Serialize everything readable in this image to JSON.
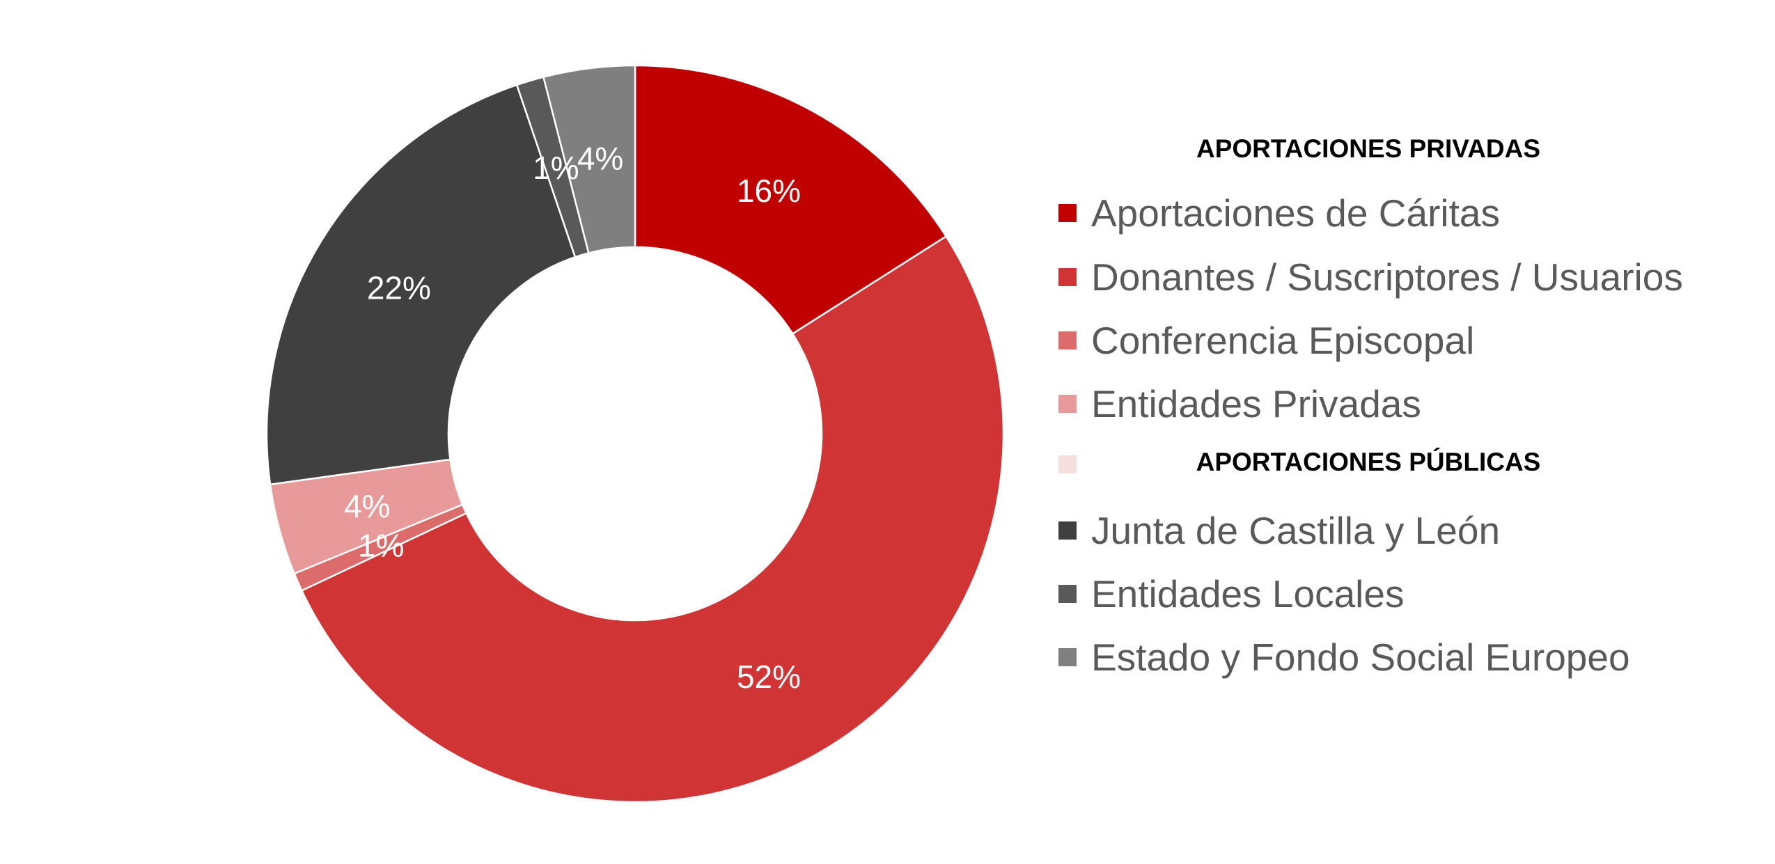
{
  "chart_data": {
    "type": "pie",
    "donut": true,
    "legend_position": "right",
    "slices": [
      {
        "label": "Aportaciones de Cáritas",
        "value": 16,
        "display": "16%",
        "color": "#C00000"
      },
      {
        "label": "Donantes / Suscriptores / Usuarios",
        "value": 52,
        "display": "52%",
        "color": "#D03435"
      },
      {
        "label": "Conferencia Episcopal",
        "value": 0.8,
        "display": "1%",
        "color": "#DC6B6B"
      },
      {
        "label": "Entidades Privadas",
        "value": 4,
        "display": "4%",
        "color": "#E89A9A"
      },
      {
        "label": "",
        "value": 0,
        "display": "",
        "color": "#F6DFDF"
      },
      {
        "label": "Junta de Castilla y León",
        "value": 22,
        "display": "22%",
        "color": "#404040"
      },
      {
        "label": "Entidades Locales",
        "value": 1.2,
        "display": "1%",
        "color": "#595959"
      },
      {
        "label": "Estado y Fondo Social Europeo",
        "value": 4,
        "display": "4%",
        "color": "#7F7F7F"
      }
    ],
    "legend_groups": {
      "private_header": "APORTACIONES PRIVADAS",
      "public_header": "APORTACIONES PÚBLICAS"
    }
  }
}
